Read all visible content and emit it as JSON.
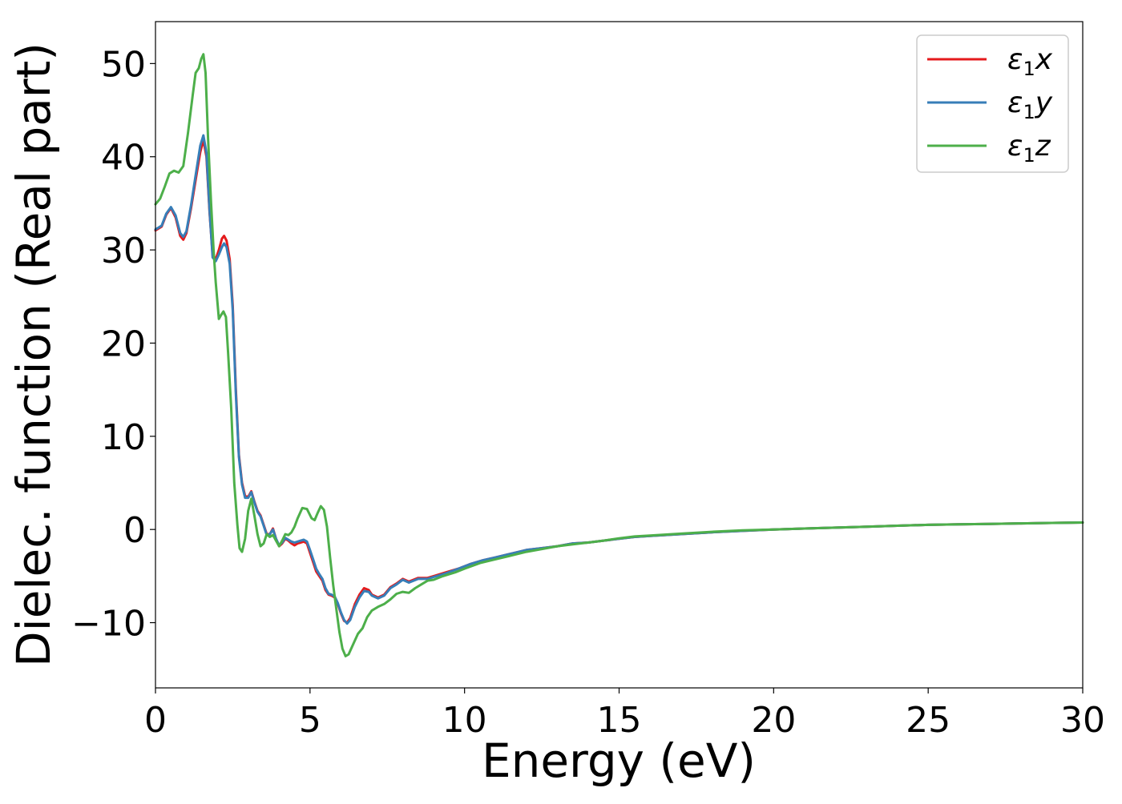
{
  "chart_data": {
    "type": "line",
    "title": "",
    "xlabel": "Energy (eV)",
    "ylabel": "Dielec. function (Real part)",
    "xlim": [
      0,
      30
    ],
    "ylim": [
      -17,
      54.5
    ],
    "grid": false,
    "legend_position": "top-right",
    "xticks": [
      0,
      5,
      10,
      15,
      20,
      25,
      30
    ],
    "xtick_labels": [
      "0",
      "5",
      "10",
      "15",
      "20",
      "25",
      "30"
    ],
    "yticks": [
      -10,
      0,
      10,
      20,
      30,
      40,
      50
    ],
    "ytick_labels": [
      "−10",
      "0",
      "10",
      "20",
      "30",
      "40",
      "50"
    ],
    "series": [
      {
        "name": "ε₁x",
        "legend_base": "ε",
        "legend_sub": "1",
        "legend_suffix": "x",
        "color": "#e41a1c",
        "points": [
          [
            0,
            32.1
          ],
          [
            0.2,
            32.5
          ],
          [
            0.35,
            33.8
          ],
          [
            0.5,
            34.5
          ],
          [
            0.65,
            33.5
          ],
          [
            0.8,
            31.5
          ],
          [
            0.9,
            31.1
          ],
          [
            1.0,
            31.8
          ],
          [
            1.15,
            34.5
          ],
          [
            1.3,
            37.5
          ],
          [
            1.45,
            40.5
          ],
          [
            1.55,
            41.8
          ],
          [
            1.65,
            40.0
          ],
          [
            1.75,
            34.0
          ],
          [
            1.85,
            29.5
          ],
          [
            1.95,
            29.0
          ],
          [
            2.05,
            30.0
          ],
          [
            2.15,
            31.2
          ],
          [
            2.22,
            31.5
          ],
          [
            2.3,
            31.0
          ],
          [
            2.4,
            29.0
          ],
          [
            2.5,
            24.0
          ],
          [
            2.6,
            15.0
          ],
          [
            2.7,
            8.0
          ],
          [
            2.8,
            5.0
          ],
          [
            2.9,
            3.6
          ],
          [
            3.0,
            3.5
          ],
          [
            3.1,
            4.1
          ],
          [
            3.2,
            3.0
          ],
          [
            3.3,
            2.0
          ],
          [
            3.4,
            1.5
          ],
          [
            3.5,
            0.5
          ],
          [
            3.6,
            -0.5
          ],
          [
            3.7,
            -0.5
          ],
          [
            3.8,
            0.1
          ],
          [
            3.9,
            -1.0
          ],
          [
            4.0,
            -1.8
          ],
          [
            4.1,
            -1.5
          ],
          [
            4.2,
            -1.0
          ],
          [
            4.3,
            -1.2
          ],
          [
            4.4,
            -1.5
          ],
          [
            4.5,
            -1.7
          ],
          [
            4.6,
            -1.5
          ],
          [
            4.7,
            -1.4
          ],
          [
            4.8,
            -1.3
          ],
          [
            4.9,
            -1.5
          ],
          [
            5.0,
            -2.5
          ],
          [
            5.1,
            -3.5
          ],
          [
            5.2,
            -4.5
          ],
          [
            5.3,
            -5.0
          ],
          [
            5.4,
            -5.5
          ],
          [
            5.5,
            -6.5
          ],
          [
            5.6,
            -7.0
          ],
          [
            5.7,
            -7.1
          ],
          [
            5.8,
            -7.3
          ],
          [
            5.9,
            -8.0
          ],
          [
            6.0,
            -9.0
          ],
          [
            6.1,
            -9.8
          ],
          [
            6.2,
            -10.0
          ],
          [
            6.3,
            -9.5
          ],
          [
            6.45,
            -8.0
          ],
          [
            6.6,
            -7.0
          ],
          [
            6.75,
            -6.3
          ],
          [
            6.9,
            -6.5
          ],
          [
            7.0,
            -7.0
          ],
          [
            7.2,
            -7.3
          ],
          [
            7.4,
            -7.0
          ],
          [
            7.6,
            -6.2
          ],
          [
            7.8,
            -5.8
          ],
          [
            8.0,
            -5.3
          ],
          [
            8.2,
            -5.6
          ],
          [
            8.5,
            -5.2
          ],
          [
            8.8,
            -5.2
          ],
          [
            9.0,
            -5.0
          ],
          [
            9.4,
            -4.6
          ],
          [
            9.8,
            -4.2
          ],
          [
            10.2,
            -3.7
          ],
          [
            10.6,
            -3.3
          ],
          [
            11.0,
            -3.0
          ],
          [
            11.5,
            -2.6
          ],
          [
            12.0,
            -2.2
          ],
          [
            12.5,
            -2.0
          ],
          [
            13.0,
            -1.8
          ],
          [
            13.5,
            -1.5
          ],
          [
            14.0,
            -1.4
          ],
          [
            14.5,
            -1.2
          ],
          [
            15.0,
            -1.0
          ],
          [
            15.5,
            -0.8
          ],
          [
            16.0,
            -0.7
          ],
          [
            17.0,
            -0.5
          ],
          [
            18.0,
            -0.3
          ],
          [
            19.0,
            -0.15
          ],
          [
            20.0,
            0.0
          ],
          [
            21.0,
            0.1
          ],
          [
            22.0,
            0.2
          ],
          [
            23.0,
            0.3
          ],
          [
            24.0,
            0.4
          ],
          [
            25.0,
            0.5
          ],
          [
            26.0,
            0.55
          ],
          [
            27.0,
            0.6
          ],
          [
            28.0,
            0.65
          ],
          [
            29.0,
            0.7
          ],
          [
            30.0,
            0.75
          ]
        ]
      },
      {
        "name": "ε₁y",
        "legend_base": "ε",
        "legend_sub": "1",
        "legend_suffix": "y",
        "color": "#377eb8",
        "points": [
          [
            0,
            32.2
          ],
          [
            0.2,
            32.6
          ],
          [
            0.35,
            33.9
          ],
          [
            0.5,
            34.6
          ],
          [
            0.65,
            33.7
          ],
          [
            0.8,
            31.8
          ],
          [
            0.9,
            31.4
          ],
          [
            1.0,
            32.0
          ],
          [
            1.15,
            34.8
          ],
          [
            1.3,
            38.0
          ],
          [
            1.45,
            41.2
          ],
          [
            1.55,
            42.3
          ],
          [
            1.65,
            40.4
          ],
          [
            1.75,
            34.2
          ],
          [
            1.85,
            29.2
          ],
          [
            1.95,
            28.8
          ],
          [
            2.05,
            29.5
          ],
          [
            2.15,
            30.3
          ],
          [
            2.22,
            30.7
          ],
          [
            2.3,
            30.3
          ],
          [
            2.4,
            28.5
          ],
          [
            2.5,
            23.5
          ],
          [
            2.6,
            14.5
          ],
          [
            2.7,
            7.8
          ],
          [
            2.8,
            4.8
          ],
          [
            2.9,
            3.4
          ],
          [
            3.0,
            3.4
          ],
          [
            3.1,
            4.0
          ],
          [
            3.2,
            2.9
          ],
          [
            3.3,
            1.9
          ],
          [
            3.4,
            1.4
          ],
          [
            3.5,
            0.4
          ],
          [
            3.6,
            -0.6
          ],
          [
            3.7,
            -0.5
          ],
          [
            3.8,
            0.0
          ],
          [
            3.9,
            -1.0
          ],
          [
            4.0,
            -1.7
          ],
          [
            4.1,
            -1.4
          ],
          [
            4.2,
            -0.9
          ],
          [
            4.3,
            -1.1
          ],
          [
            4.4,
            -1.3
          ],
          [
            4.5,
            -1.4
          ],
          [
            4.6,
            -1.3
          ],
          [
            4.7,
            -1.2
          ],
          [
            4.8,
            -1.1
          ],
          [
            4.9,
            -1.3
          ],
          [
            5.0,
            -2.2
          ],
          [
            5.1,
            -3.2
          ],
          [
            5.2,
            -4.2
          ],
          [
            5.3,
            -4.8
          ],
          [
            5.4,
            -5.3
          ],
          [
            5.5,
            -6.3
          ],
          [
            5.6,
            -6.9
          ],
          [
            5.7,
            -7.0
          ],
          [
            5.8,
            -7.2
          ],
          [
            5.9,
            -7.9
          ],
          [
            6.0,
            -8.9
          ],
          [
            6.1,
            -9.7
          ],
          [
            6.2,
            -10.1
          ],
          [
            6.3,
            -9.7
          ],
          [
            6.45,
            -8.3
          ],
          [
            6.6,
            -7.3
          ],
          [
            6.75,
            -6.6
          ],
          [
            6.9,
            -6.7
          ],
          [
            7.0,
            -7.1
          ],
          [
            7.2,
            -7.4
          ],
          [
            7.4,
            -7.1
          ],
          [
            7.6,
            -6.3
          ],
          [
            7.8,
            -5.9
          ],
          [
            8.0,
            -5.4
          ],
          [
            8.2,
            -5.7
          ],
          [
            8.5,
            -5.3
          ],
          [
            8.8,
            -5.3
          ],
          [
            9.0,
            -5.1
          ],
          [
            9.4,
            -4.7
          ],
          [
            9.8,
            -4.2
          ],
          [
            10.2,
            -3.7
          ],
          [
            10.6,
            -3.3
          ],
          [
            11.0,
            -3.0
          ],
          [
            11.5,
            -2.6
          ],
          [
            12.0,
            -2.2
          ],
          [
            12.5,
            -2.0
          ],
          [
            13.0,
            -1.8
          ],
          [
            13.5,
            -1.5
          ],
          [
            14.0,
            -1.4
          ],
          [
            14.5,
            -1.2
          ],
          [
            15.0,
            -1.0
          ],
          [
            15.5,
            -0.8
          ],
          [
            16.0,
            -0.7
          ],
          [
            17.0,
            -0.5
          ],
          [
            18.0,
            -0.3
          ],
          [
            19.0,
            -0.15
          ],
          [
            20.0,
            0.0
          ],
          [
            21.0,
            0.1
          ],
          [
            22.0,
            0.2
          ],
          [
            23.0,
            0.3
          ],
          [
            24.0,
            0.4
          ],
          [
            25.0,
            0.5
          ],
          [
            26.0,
            0.55
          ],
          [
            27.0,
            0.6
          ],
          [
            28.0,
            0.65
          ],
          [
            29.0,
            0.7
          ],
          [
            30.0,
            0.75
          ]
        ]
      },
      {
        "name": "ε₁z",
        "legend_base": "ε",
        "legend_sub": "1",
        "legend_suffix": "z",
        "color": "#4daf4a",
        "points": [
          [
            0,
            34.9
          ],
          [
            0.15,
            35.5
          ],
          [
            0.3,
            36.8
          ],
          [
            0.45,
            38.2
          ],
          [
            0.6,
            38.5
          ],
          [
            0.75,
            38.3
          ],
          [
            0.9,
            39.0
          ],
          [
            1.05,
            42.5
          ],
          [
            1.2,
            46.5
          ],
          [
            1.3,
            49.0
          ],
          [
            1.4,
            49.5
          ],
          [
            1.48,
            50.5
          ],
          [
            1.55,
            51.0
          ],
          [
            1.62,
            49.0
          ],
          [
            1.7,
            42.0
          ],
          [
            1.8,
            35.0
          ],
          [
            1.88,
            30.0
          ],
          [
            1.95,
            26.5
          ],
          [
            2.05,
            22.6
          ],
          [
            2.12,
            23.0
          ],
          [
            2.2,
            23.4
          ],
          [
            2.28,
            22.8
          ],
          [
            2.35,
            19.0
          ],
          [
            2.45,
            13.0
          ],
          [
            2.55,
            5.0
          ],
          [
            2.65,
            0.5
          ],
          [
            2.72,
            -2.0
          ],
          [
            2.8,
            -2.4
          ],
          [
            2.9,
            -1.0
          ],
          [
            3.0,
            2.0
          ],
          [
            3.1,
            3.3
          ],
          [
            3.2,
            1.5
          ],
          [
            3.3,
            -0.5
          ],
          [
            3.4,
            -1.8
          ],
          [
            3.5,
            -1.5
          ],
          [
            3.6,
            -0.5
          ],
          [
            3.7,
            -0.8
          ],
          [
            3.8,
            -0.6
          ],
          [
            3.9,
            -1.2
          ],
          [
            4.0,
            -1.8
          ],
          [
            4.1,
            -1.2
          ],
          [
            4.2,
            -0.5
          ],
          [
            4.3,
            -0.6
          ],
          [
            4.4,
            -0.3
          ],
          [
            4.5,
            0.3
          ],
          [
            4.6,
            1.2
          ],
          [
            4.75,
            2.3
          ],
          [
            4.9,
            2.2
          ],
          [
            5.05,
            1.2
          ],
          [
            5.15,
            1.0
          ],
          [
            5.25,
            1.8
          ],
          [
            5.35,
            2.5
          ],
          [
            5.45,
            2.1
          ],
          [
            5.55,
            0.3
          ],
          [
            5.65,
            -3.0
          ],
          [
            5.75,
            -6.0
          ],
          [
            5.85,
            -8.5
          ],
          [
            5.95,
            -11.0
          ],
          [
            6.05,
            -12.8
          ],
          [
            6.15,
            -13.6
          ],
          [
            6.25,
            -13.4
          ],
          [
            6.4,
            -12.3
          ],
          [
            6.55,
            -11.2
          ],
          [
            6.7,
            -10.6
          ],
          [
            6.85,
            -9.4
          ],
          [
            7.0,
            -8.7
          ],
          [
            7.2,
            -8.3
          ],
          [
            7.4,
            -8.0
          ],
          [
            7.6,
            -7.5
          ],
          [
            7.8,
            -6.9
          ],
          [
            8.0,
            -6.7
          ],
          [
            8.2,
            -6.8
          ],
          [
            8.4,
            -6.3
          ],
          [
            8.6,
            -5.9
          ],
          [
            8.8,
            -5.5
          ],
          [
            9.0,
            -5.4
          ],
          [
            9.3,
            -5.0
          ],
          [
            9.7,
            -4.6
          ],
          [
            10.0,
            -4.2
          ],
          [
            10.5,
            -3.6
          ],
          [
            11.0,
            -3.2
          ],
          [
            11.5,
            -2.8
          ],
          [
            12.0,
            -2.4
          ],
          [
            12.5,
            -2.1
          ],
          [
            13.0,
            -1.8
          ],
          [
            13.5,
            -1.6
          ],
          [
            14.0,
            -1.4
          ],
          [
            14.5,
            -1.2
          ],
          [
            15.0,
            -0.95
          ],
          [
            15.5,
            -0.75
          ],
          [
            16.0,
            -0.65
          ],
          [
            17.0,
            -0.45
          ],
          [
            18.0,
            -0.25
          ],
          [
            19.0,
            -0.1
          ],
          [
            20.0,
            0.0
          ],
          [
            21.0,
            0.1
          ],
          [
            22.0,
            0.2
          ],
          [
            23.0,
            0.3
          ],
          [
            24.0,
            0.4
          ],
          [
            25.0,
            0.5
          ],
          [
            26.0,
            0.55
          ],
          [
            27.0,
            0.6
          ],
          [
            28.0,
            0.65
          ],
          [
            29.0,
            0.7
          ],
          [
            30.0,
            0.75
          ]
        ]
      }
    ]
  }
}
